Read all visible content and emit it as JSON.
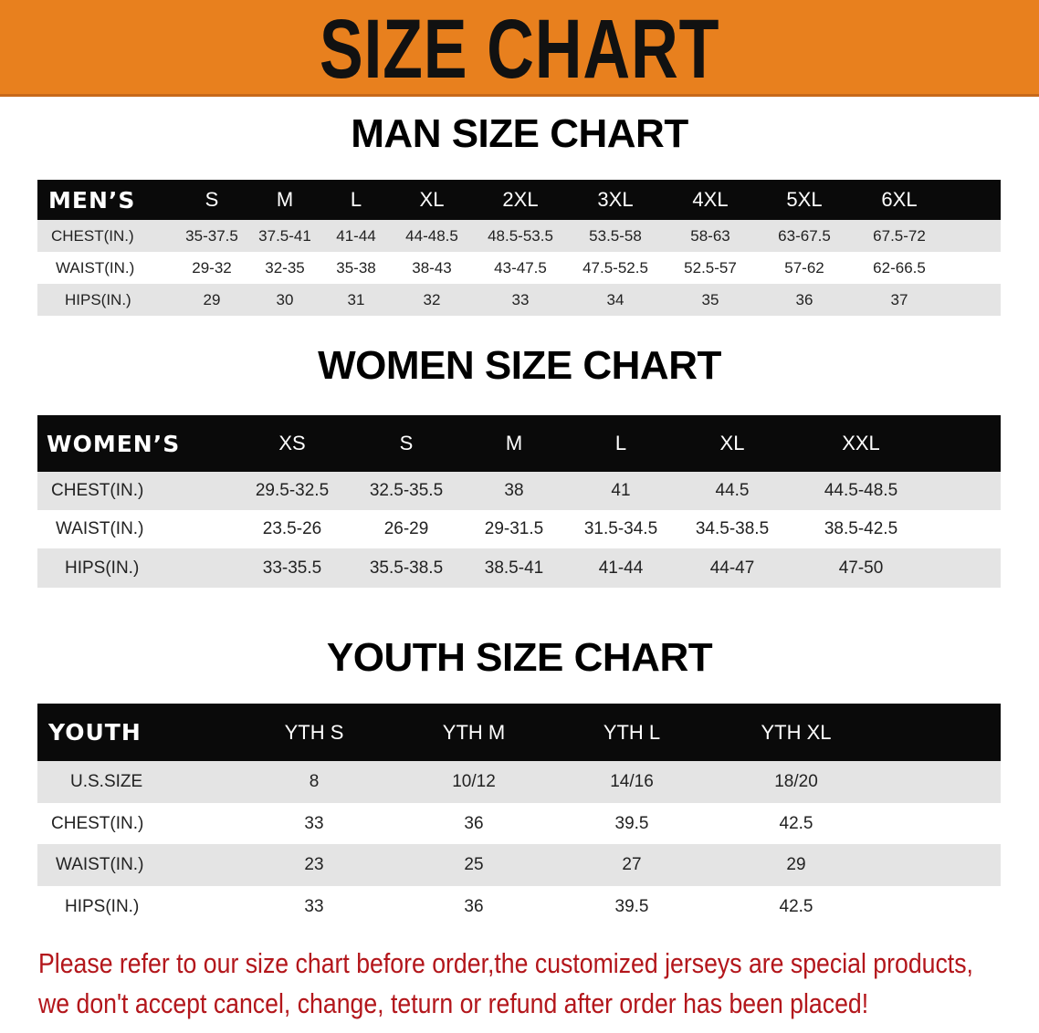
{
  "banner": {
    "title": "SIZE CHART",
    "color": "#e8801e"
  },
  "men": {
    "title": "MAN SIZE CHART",
    "header": [
      "MEN’S",
      "S",
      "M",
      "L",
      "XL",
      "2XL",
      "3XL",
      "4XL",
      "5XL",
      "6XL"
    ],
    "rows": [
      [
        "CHEST(IN.)",
        "35-37.5",
        "37.5-41",
        "41-44",
        "44-48.5",
        "48.5-53.5",
        "53.5-58",
        "58-63",
        "63-67.5",
        "67.5-72"
      ],
      [
        "WAIST(IN.)",
        "29-32",
        "32-35",
        "35-38",
        "38-43",
        "43-47.5",
        "47.5-52.5",
        "52.5-57",
        "57-62",
        "62-66.5"
      ],
      [
        "HIPS(IN.)",
        "29",
        "30",
        "31",
        "32",
        "33",
        "34",
        "35",
        "36",
        "37"
      ]
    ]
  },
  "women": {
    "title": "WOMEN SIZE CHART",
    "header": [
      "WOMEN’S",
      "XS",
      "S",
      "M",
      "L",
      "XL",
      "XXL"
    ],
    "rows": [
      [
        "CHEST(IN.)",
        "29.5-32.5",
        "32.5-35.5",
        "38",
        "41",
        "44.5",
        "44.5-48.5"
      ],
      [
        "WAIST(IN.)",
        "23.5-26",
        "26-29",
        "29-31.5",
        "31.5-34.5",
        "34.5-38.5",
        "38.5-42.5"
      ],
      [
        "HIPS(IN.)",
        "33-35.5",
        "35.5-38.5",
        "38.5-41",
        "41-44",
        "44-47",
        "47-50"
      ]
    ]
  },
  "youth": {
    "title": "YOUTH SIZE CHART",
    "header": [
      "YOUTH",
      "YTH S",
      "YTH M",
      "YTH L",
      "YTH XL"
    ],
    "rows": [
      [
        "U.S.SIZE",
        "8",
        "10/12",
        "14/16",
        "18/20"
      ],
      [
        "CHEST(IN.)",
        "33",
        "36",
        "39.5",
        "42.5"
      ],
      [
        "WAIST(IN.)",
        "23",
        "25",
        "27",
        "29"
      ],
      [
        "HIPS(IN.)",
        "33",
        "36",
        "39.5",
        "42.5"
      ]
    ]
  },
  "notice": {
    "line1": "Please refer to our size chart before order,the customized jerseys are special products,",
    "line2": "we don't accept cancel, change, teturn or refund after order has been placed!",
    "color": "#b3161b"
  }
}
